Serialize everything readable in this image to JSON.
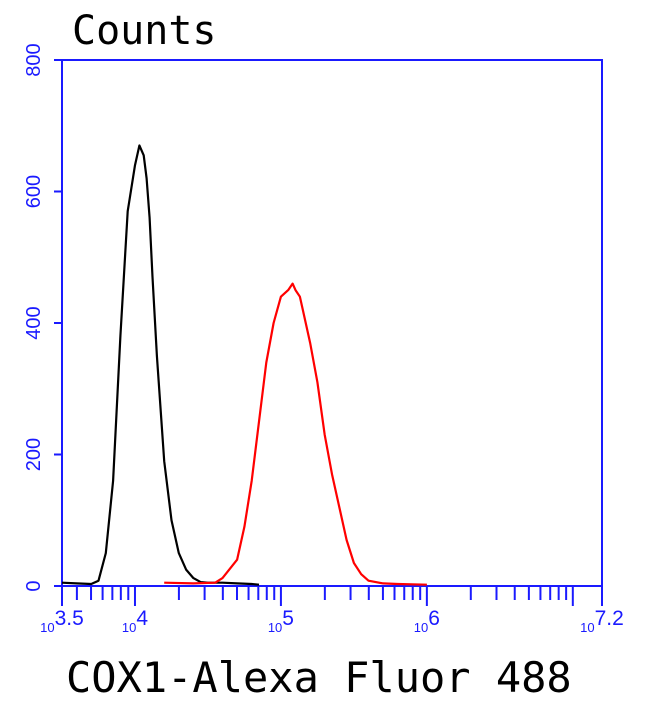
{
  "chart_data": {
    "type": "line",
    "title": "",
    "ylabel": "Counts",
    "xlabel": "COX1-Alexa Fluor 488",
    "x_scale": "log10",
    "xlim": [
      3.5,
      7.2
    ],
    "ylim": [
      0,
      800
    ],
    "grid": false,
    "legend": "none",
    "y_ticks": [
      0,
      200,
      400,
      600,
      800
    ],
    "y_tick_labels": [
      "0",
      "200",
      "400",
      "600",
      "800"
    ],
    "x_ticks": [
      {
        "pos": 3.5,
        "base": "10",
        "exp": "3.5"
      },
      {
        "pos": 4,
        "base": "10",
        "exp": "4"
      },
      {
        "pos": 5,
        "base": "10",
        "exp": "5"
      },
      {
        "pos": 6,
        "base": "10",
        "exp": "6"
      },
      {
        "pos": 7.2,
        "base": "10",
        "exp": "7.2"
      }
    ],
    "axis_color": "#1a1aff",
    "series": [
      {
        "color": "#000000",
        "x": [
          3.5,
          3.6,
          3.7,
          3.75,
          3.8,
          3.85,
          3.9,
          3.95,
          4.0,
          4.03,
          4.06,
          4.08,
          4.1,
          4.12,
          4.15,
          4.2,
          4.25,
          4.3,
          4.35,
          4.4,
          4.45,
          4.5,
          4.55,
          4.6,
          4.7,
          4.8,
          4.85
        ],
        "y": [
          5,
          4,
          3,
          8,
          50,
          160,
          380,
          570,
          640,
          670,
          655,
          620,
          560,
          470,
          350,
          190,
          100,
          50,
          25,
          12,
          6,
          5,
          5,
          5,
          4,
          3,
          2
        ]
      },
      {
        "color": "#ff0000",
        "x": [
          4.2,
          4.4,
          4.55,
          4.6,
          4.7,
          4.75,
          4.8,
          4.85,
          4.9,
          4.95,
          5.0,
          5.05,
          5.08,
          5.1,
          5.13,
          5.15,
          5.2,
          5.25,
          5.3,
          5.35,
          5.4,
          5.45,
          5.5,
          5.55,
          5.6,
          5.7,
          5.8,
          6.0
        ],
        "y": [
          5,
          4,
          5,
          12,
          40,
          90,
          160,
          250,
          340,
          400,
          440,
          450,
          460,
          450,
          440,
          420,
          370,
          310,
          230,
          170,
          120,
          70,
          35,
          18,
          8,
          4,
          3,
          2
        ]
      }
    ]
  }
}
